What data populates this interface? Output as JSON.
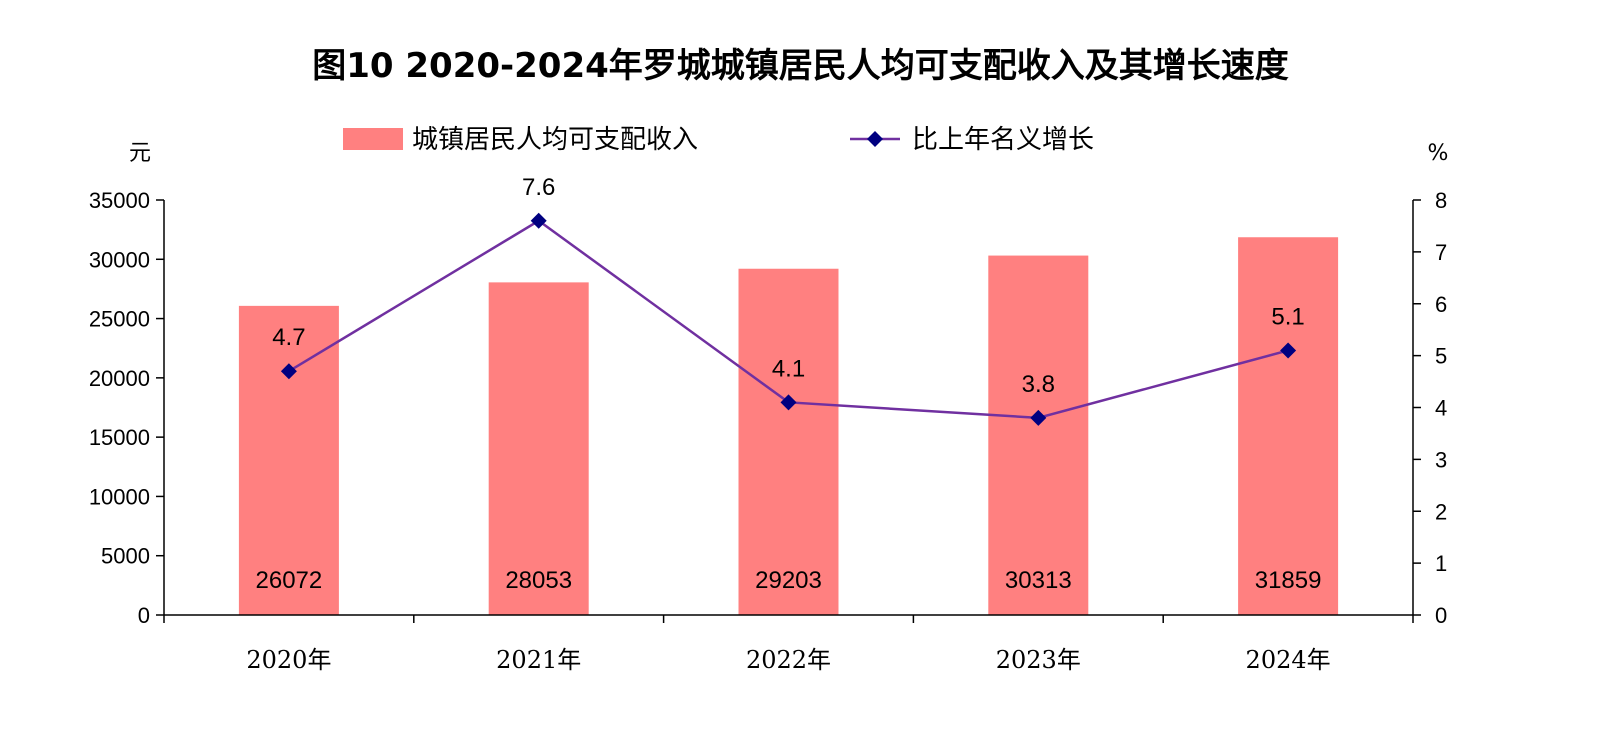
{
  "chart_data": {
    "type": "bar",
    "title": "图10 2020-2024年罗城城镇居民人均可支配收入及其增长速度",
    "categories": [
      "2020年",
      "2021年",
      "2022年",
      "2023年",
      "2024年"
    ],
    "series": [
      {
        "name": "城镇居民人均可支配收入",
        "type": "bar",
        "axis": "left",
        "values": [
          26072,
          28053,
          29203,
          30313,
          31859
        ],
        "color": "#ff8080"
      },
      {
        "name": "比上年名义增长",
        "type": "line",
        "axis": "right",
        "values": [
          4.7,
          7.6,
          4.1,
          3.8,
          5.1
        ],
        "color": "#7030a0",
        "marker_color": "#000080"
      }
    ],
    "y_left": {
      "unit": "元",
      "min": 0,
      "max": 35000,
      "ticks": [
        0,
        5000,
        10000,
        15000,
        20000,
        25000,
        30000,
        35000
      ]
    },
    "y_right": {
      "unit": "%",
      "min": 0,
      "max": 8,
      "ticks": [
        0,
        1,
        2,
        3,
        4,
        5,
        6,
        7,
        8
      ]
    },
    "legend_position": "top",
    "grid": false
  }
}
